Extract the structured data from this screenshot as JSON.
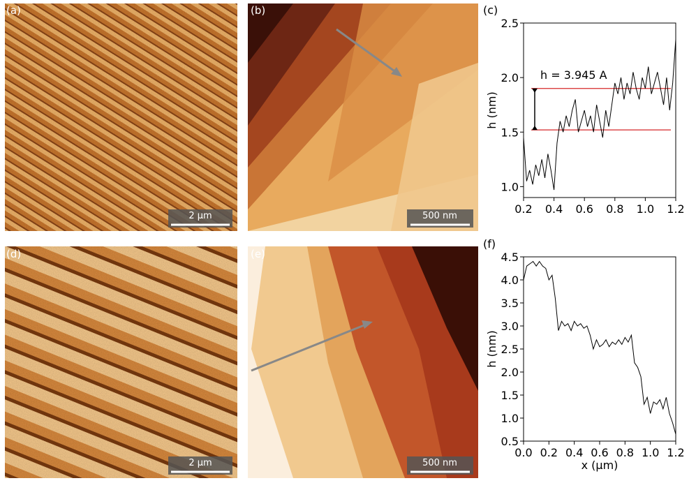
{
  "panels": [
    {
      "label": "(a)",
      "scale_bar": "2 µm"
    },
    {
      "label": "(b)",
      "scale_bar": "500 nm"
    },
    {
      "label": "(d)",
      "scale_bar": "2 µm"
    },
    {
      "label": "(e)",
      "scale_bar": "500 nm"
    }
  ],
  "chart_data": [
    {
      "type": "line",
      "panel_label": "(c)",
      "y_label": "h (nm)",
      "annotation": "h = 3.945 A",
      "xlim": [
        0.2,
        1.2
      ],
      "ylim": [
        0.9,
        2.5
      ],
      "xticks": [
        0.2,
        0.4,
        0.6,
        0.8,
        {
          "value": 1,
          "label": "1.0"
        },
        1.2
      ],
      "yticks": [
        {
          "value": 1,
          "label": "1.0"
        },
        1.5,
        {
          "value": 2,
          "label": "2.0"
        },
        2.5
      ],
      "reference_lines": [
        1.52,
        1.9
      ],
      "reference_color": "#d62728",
      "x": [
        0.2,
        0.22,
        0.24,
        0.26,
        0.28,
        0.3,
        0.32,
        0.34,
        0.36,
        0.38,
        0.4,
        0.42,
        0.44,
        0.46,
        0.48,
        0.5,
        0.52,
        0.54,
        0.56,
        0.58,
        0.6,
        0.62,
        0.64,
        0.66,
        0.68,
        0.7,
        0.72,
        0.74,
        0.76,
        0.78,
        0.8,
        0.82,
        0.84,
        0.86,
        0.88,
        0.9,
        0.92,
        0.94,
        0.96,
        0.98,
        1.0,
        1.02,
        1.04,
        1.06,
        1.08,
        1.1,
        1.12,
        1.14,
        1.16,
        1.18,
        1.2
      ],
      "series": [
        {
          "color": "#000000",
          "values": [
            1.45,
            1.05,
            1.15,
            1.02,
            1.2,
            1.1,
            1.25,
            1.08,
            1.3,
            1.15,
            0.97,
            1.4,
            1.6,
            1.5,
            1.65,
            1.55,
            1.7,
            1.8,
            1.5,
            1.6,
            1.7,
            1.55,
            1.65,
            1.5,
            1.75,
            1.6,
            1.45,
            1.7,
            1.55,
            1.75,
            1.95,
            1.85,
            2.0,
            1.8,
            1.95,
            1.85,
            2.05,
            1.9,
            1.8,
            2.0,
            1.9,
            2.1,
            1.85,
            1.95,
            2.05,
            1.9,
            1.75,
            2.0,
            1.7,
            1.95,
            2.35
          ]
        }
      ]
    },
    {
      "type": "line",
      "panel_label": "(f)",
      "y_label": "h (nm)",
      "x_label": "x (µm)",
      "xlim": [
        0,
        1.2
      ],
      "ylim": [
        0.5,
        4.5
      ],
      "xticks": [
        {
          "value": 0,
          "label": "0.0"
        },
        0.2,
        0.4,
        0.6,
        0.8,
        {
          "value": 1,
          "label": "1.0"
        },
        1.2
      ],
      "yticks": [
        0.5,
        {
          "value": 1,
          "label": "1.0"
        },
        1.5,
        {
          "value": 2,
          "label": "2.0"
        },
        2.5,
        {
          "value": 3,
          "label": "3.0"
        },
        3.5,
        {
          "value": 4,
          "label": "4.0"
        },
        4.5
      ],
      "x": [
        0,
        0.025,
        0.05,
        0.075,
        0.1,
        0.125,
        0.15,
        0.175,
        0.2,
        0.225,
        0.25,
        0.275,
        0.3,
        0.325,
        0.35,
        0.375,
        0.4,
        0.425,
        0.45,
        0.475,
        0.5,
        0.525,
        0.55,
        0.575,
        0.6,
        0.625,
        0.65,
        0.675,
        0.7,
        0.725,
        0.75,
        0.775,
        0.8,
        0.825,
        0.85,
        0.875,
        0.9,
        0.925,
        0.95,
        0.975,
        1.0,
        1.025,
        1.05,
        1.075,
        1.1,
        1.125,
        1.15,
        1.175,
        1.2
      ],
      "series": [
        {
          "color": "#000000",
          "values": [
            4.0,
            4.3,
            4.35,
            4.4,
            4.3,
            4.4,
            4.3,
            4.25,
            4.0,
            4.1,
            3.6,
            2.9,
            3.1,
            3.0,
            3.05,
            2.9,
            3.1,
            3.0,
            3.05,
            2.95,
            3.0,
            2.8,
            2.5,
            2.7,
            2.55,
            2.6,
            2.7,
            2.55,
            2.65,
            2.6,
            2.7,
            2.6,
            2.75,
            2.65,
            2.8,
            2.2,
            2.1,
            1.9,
            1.3,
            1.45,
            1.1,
            1.35,
            1.3,
            1.4,
            1.2,
            1.45,
            1.1,
            0.9,
            0.65
          ]
        }
      ]
    }
  ]
}
